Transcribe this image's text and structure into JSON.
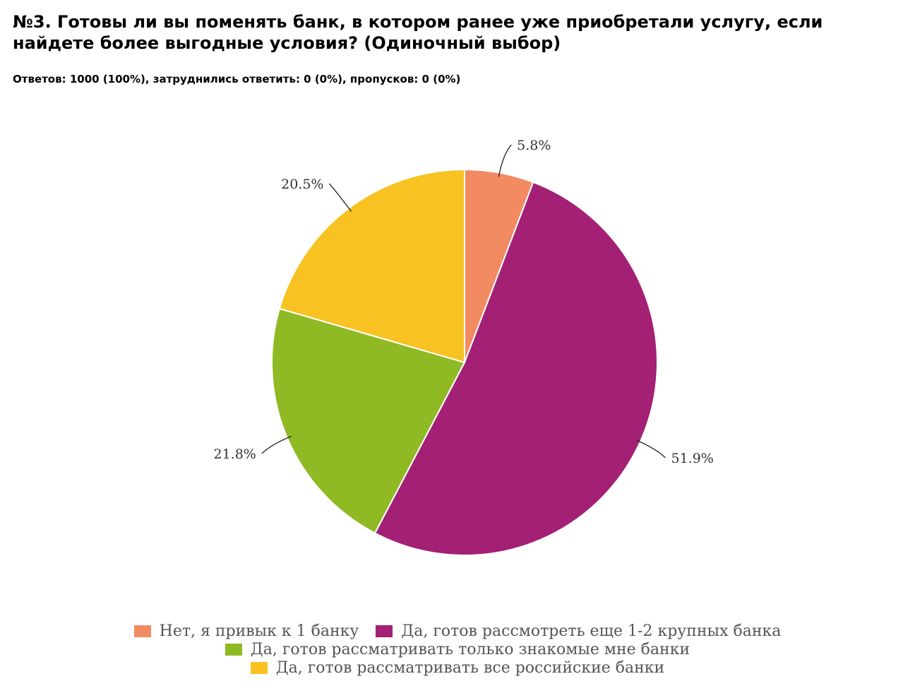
{
  "header": {
    "title": "№3. Готовы ли вы поменять банк, в котором ранее уже приобретали услугу, если найдете более выгодные условия? (Одиночный выбор)",
    "stats": "Ответов: 1000 (100%), затруднились ответить: 0 (0%), пропусков: 0 (0%)"
  },
  "chart_data": {
    "type": "pie",
    "title": "№3. Готовы ли вы поменять банк, в котором ранее уже приобретали услугу, если найдете более выгодные условия? (Одиночный выбор)",
    "legend_position": "bottom",
    "slices": [
      {
        "label": "Нет, я привык к 1 банку",
        "value": 5.8,
        "value_label": "5.8%",
        "color": "#f28b61"
      },
      {
        "label": "Да, готов рассмотреть еще 1-2 крупных банка",
        "value": 51.9,
        "value_label": "51.9%",
        "color": "#a32075"
      },
      {
        "label": "Да, готов рассматривать только знакомые мне банки",
        "value": 21.8,
        "value_label": "21.8%",
        "color": "#8fba24"
      },
      {
        "label": "Да, готов рассматривать все российские банки",
        "value": 20.5,
        "value_label": "20.5%",
        "color": "#f7c222"
      }
    ]
  }
}
